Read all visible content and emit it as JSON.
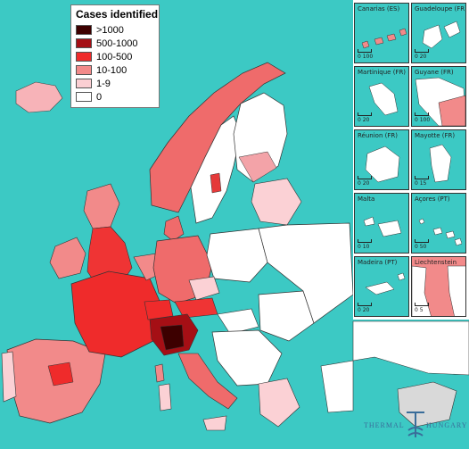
{
  "legend": {
    "title": "Cases identified",
    "items": [
      {
        "label": ">1000",
        "color": "#3d0000"
      },
      {
        "label": "500-1000",
        "color": "#a50f15"
      },
      {
        "label": "100-500",
        "color": "#ef2b2b"
      },
      {
        "label": "10-100",
        "color": "#f28a8a"
      },
      {
        "label": "1-9",
        "color": "#fbcfd3"
      },
      {
        "label": "0",
        "color": "#ffffff"
      }
    ]
  },
  "colors": {
    "sea": "#3cc9c4",
    "border": "#222222",
    "non_eu": "#d9d9d9"
  },
  "insets": [
    {
      "label": "Canarias (ES)",
      "scale": "0  100"
    },
    {
      "label": "Guadeloupe (FR)",
      "scale": "0  20"
    },
    {
      "label": "Martinique (FR)",
      "scale": "0  20"
    },
    {
      "label": "Guyane (FR)",
      "scale": "0  100"
    },
    {
      "label": "Réunion (FR)",
      "scale": "0  20"
    },
    {
      "label": "Mayotte (FR)",
      "scale": "0  15"
    },
    {
      "label": "Malta",
      "scale": "0  10"
    },
    {
      "label": "Açores (PT)",
      "scale": "0  50"
    },
    {
      "label": "Madeira (PT)",
      "scale": "0  20"
    },
    {
      "label": "Liechtenstein",
      "scale": "0  5"
    }
  ],
  "logo": {
    "left": "THERMAL",
    "right": "HUNGARY",
    "icon": "thermal-hungary-logo-icon"
  }
}
